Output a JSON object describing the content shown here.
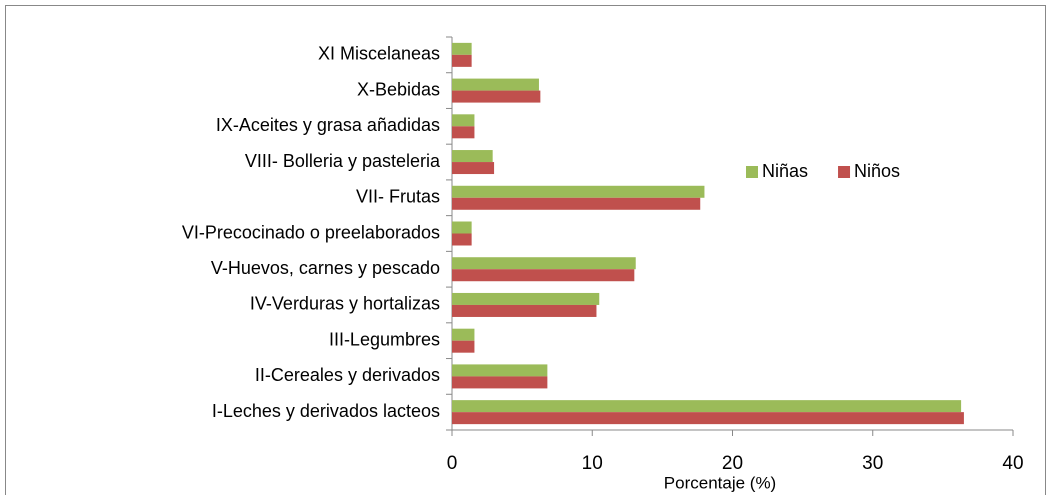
{
  "chart_data": {
    "type": "barh",
    "xlabel": "Porcentaje (%)",
    "categories": [
      "I-Leches  y derivados lacteos",
      "II-Cereales y derivados",
      "III-Legumbres",
      "IV-Verduras y hortalizas",
      "V-Huevos, carnes y pescado",
      "VI-Precocinado o preelaborados",
      "VII- Frutas",
      "VIII- Bolleria y pasteleria",
      "IX-Aceites y grasa añadidas",
      "X-Bebidas",
      "XI Miscelaneas"
    ],
    "series": [
      {
        "name": "Niñas",
        "color": "#9bbb59",
        "values": [
          36.3,
          6.8,
          1.6,
          10.5,
          13.1,
          1.4,
          18.0,
          2.9,
          1.6,
          6.2,
          1.4
        ]
      },
      {
        "name": "Niños",
        "color": "#c0504d",
        "values": [
          36.5,
          6.8,
          1.6,
          10.3,
          13.0,
          1.4,
          17.7,
          3.0,
          1.6,
          6.3,
          1.4
        ]
      }
    ],
    "xlim": [
      0,
      40
    ],
    "xticks": [
      0,
      10,
      20,
      30,
      40
    ],
    "legend": "upper right"
  }
}
